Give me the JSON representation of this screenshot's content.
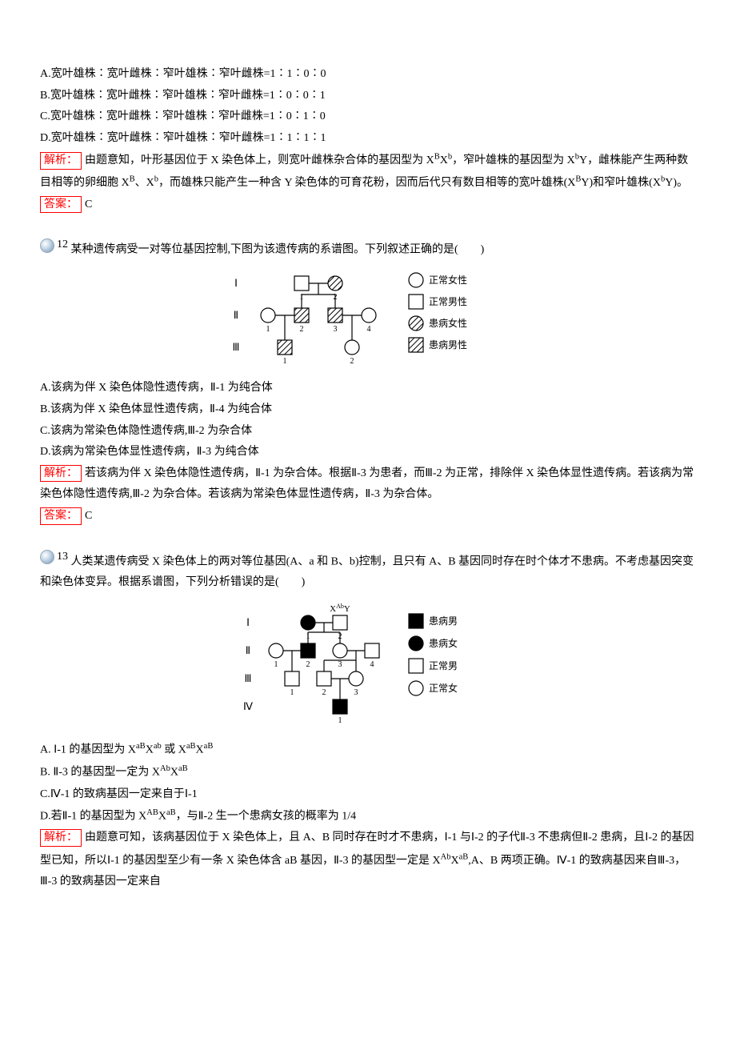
{
  "colors": {
    "text": "#000000",
    "red": "#ff0000",
    "bg": "#ffffff",
    "hatch": "#000000",
    "sphere_light": "#ffffff",
    "sphere_mid": "#c8d8e8",
    "sphere_dark": "#7090b0"
  },
  "fontsize_pt": 10.5,
  "q11": {
    "optA": "A.宽叶雄株∶宽叶雌株∶窄叶雄株∶窄叶雌株=1∶1∶0∶0",
    "optB": "B.宽叶雄株∶宽叶雌株∶窄叶雄株∶窄叶雌株=1∶0∶0∶1",
    "optC": "C.宽叶雄株∶宽叶雌株∶窄叶雄株∶窄叶雌株=1∶0∶1∶0",
    "optD": "D.宽叶雄株∶宽叶雌株∶窄叶雄株∶窄叶雌株=1∶1∶1∶1",
    "analysis_label": "解析：",
    "analysis_html": "由题意知，叶形基因位于 X 染色体上，则宽叶雌株杂合体的基因型为 X<sup>B</sup>X<sup>b</sup>，窄叶雄株的基因型为 X<sup>b</sup>Y，雌株能产生两种数目相等的卵细胞 X<sup>B</sup>、X<sup>b</sup>，而雄株只能产生一种含 Y 染色体的可育花粉，因而后代只有数目相等的宽叶雄株(X<sup>B</sup>Y)和窄叶雄株(X<sup>b</sup>Y)。",
    "answer_label": "答案：",
    "answer": "C"
  },
  "q12": {
    "number": "12",
    "stem": "某种遗传病受一对等位基因控制,下图为该遗传病的系谱图。下列叙述正确的是(　　)",
    "legend": {
      "normal_f": "正常女性",
      "normal_m": "正常男性",
      "aff_f": "患病女性",
      "aff_m": "患病男性"
    },
    "pedigree": {
      "gen_labels": [
        "Ⅰ",
        "Ⅱ",
        "Ⅲ"
      ],
      "nodes": [
        {
          "id": "I1",
          "gen": 0,
          "x": 1,
          "shape": "square",
          "fill": "empty",
          "label": "1"
        },
        {
          "id": "I2",
          "gen": 0,
          "x": 2,
          "shape": "circle",
          "fill": "hatch",
          "label": "2"
        },
        {
          "id": "II1",
          "gen": 1,
          "x": 0,
          "shape": "circle",
          "fill": "empty",
          "label": "1"
        },
        {
          "id": "II2",
          "gen": 1,
          "x": 1,
          "shape": "square",
          "fill": "hatch",
          "label": "2"
        },
        {
          "id": "II3",
          "gen": 1,
          "x": 2,
          "shape": "square",
          "fill": "hatch",
          "label": "3"
        },
        {
          "id": "II4",
          "gen": 1,
          "x": 3,
          "shape": "circle",
          "fill": "empty",
          "label": "4"
        },
        {
          "id": "III1",
          "gen": 2,
          "x": 0.5,
          "shape": "square",
          "fill": "hatch",
          "label": "1"
        },
        {
          "id": "III2",
          "gen": 2,
          "x": 2.5,
          "shape": "circle",
          "fill": "empty",
          "label": "2"
        }
      ]
    },
    "optA": "A.该病为伴 X 染色体隐性遗传病，Ⅱ-1 为纯合体",
    "optB": "B.该病为伴 X 染色体显性遗传病，Ⅱ-4 为纯合体",
    "optC": "C.该病为常染色体隐性遗传病,Ⅲ-2 为杂合体",
    "optD": "D.该病为常染色体显性遗传病，Ⅱ-3 为纯合体",
    "analysis_label": "解析：",
    "analysis": "若该病为伴 X 染色体隐性遗传病，Ⅱ-1 为杂合体。根据Ⅱ-3 为患者，而Ⅲ-2 为正常，排除伴 X 染色体显性遗传病。若该病为常染色体隐性遗传病,Ⅲ-2 为杂合体。若该病为常染色体显性遗传病，Ⅱ-3 为杂合体。",
    "answer_label": "答案：",
    "answer": "C"
  },
  "q13": {
    "number": "13",
    "stem": "人类某遗传病受 X 染色体上的两对等位基因(A、a 和 B、b)控制，且只有 A、B 基因同时存在时个体才不患病。不考虑基因突变和染色体变异。根据系谱图，下列分析错误的是(　　)",
    "top_label_html": "X<sup>Ab</sup>Y",
    "legend": {
      "aff_m": "患病男",
      "aff_f": "患病女",
      "normal_m": "正常男",
      "normal_f": "正常女"
    },
    "pedigree": {
      "gen_labels": [
        "Ⅰ",
        "Ⅱ",
        "Ⅲ",
        "Ⅳ"
      ],
      "nodes": [
        {
          "id": "I1",
          "gen": 0,
          "x": 1,
          "shape": "circle",
          "fill": "solid",
          "label": "1"
        },
        {
          "id": "I2",
          "gen": 0,
          "x": 2,
          "shape": "square",
          "fill": "empty",
          "label": "2"
        },
        {
          "id": "II1",
          "gen": 1,
          "x": 0,
          "shape": "circle",
          "fill": "empty",
          "label": "1"
        },
        {
          "id": "II2",
          "gen": 1,
          "x": 1,
          "shape": "square",
          "fill": "solid",
          "label": "2"
        },
        {
          "id": "II3",
          "gen": 1,
          "x": 2,
          "shape": "circle",
          "fill": "empty",
          "label": "3"
        },
        {
          "id": "II4",
          "gen": 1,
          "x": 3,
          "shape": "square",
          "fill": "empty",
          "label": "4"
        },
        {
          "id": "III1",
          "gen": 2,
          "x": 0.5,
          "shape": "square",
          "fill": "empty",
          "label": "1"
        },
        {
          "id": "III2",
          "gen": 2,
          "x": 1.5,
          "shape": "square",
          "fill": "empty",
          "label": "2"
        },
        {
          "id": "III3",
          "gen": 2,
          "x": 2.5,
          "shape": "circle",
          "fill": "empty",
          "label": "3"
        },
        {
          "id": "IV1",
          "gen": 3,
          "x": 2,
          "shape": "square",
          "fill": "solid",
          "label": "1"
        }
      ]
    },
    "optA_html": "A. Ⅰ-1 的基因型为 X<sup>aB</sup>X<sup>ab</sup> 或 X<sup>aB</sup>X<sup>aB</sup>",
    "optB_html": "B. Ⅱ-3 的基因型一定为 X<sup>Ab</sup>X<sup>aB</sup>",
    "optC": "C.Ⅳ-1 的致病基因一定来自于Ⅰ-1",
    "optD_html": "D.若Ⅱ-1 的基因型为 X<sup>AB</sup>X<sup>aB</sup>，与Ⅱ-2 生一个患病女孩的概率为 1/4",
    "analysis_label": "解析：",
    "analysis_html": "由题意可知，该病基因位于 X 染色体上，且 A、B 同时存在时才不患病，Ⅰ-1 与Ⅰ-2 的子代Ⅱ-3 不患病但Ⅱ-2 患病，且Ⅰ-2 的基因型已知，所以Ⅰ-1 的基因型至少有一条 X 染色体含 aB 基因，Ⅱ-3 的基因型一定是 X<sup>Ab</sup>X<sup>aB</sup>,A、B 两项正确。Ⅳ-1 的致病基因来自Ⅲ-3，Ⅲ-3 的致病基因一定来自"
  }
}
